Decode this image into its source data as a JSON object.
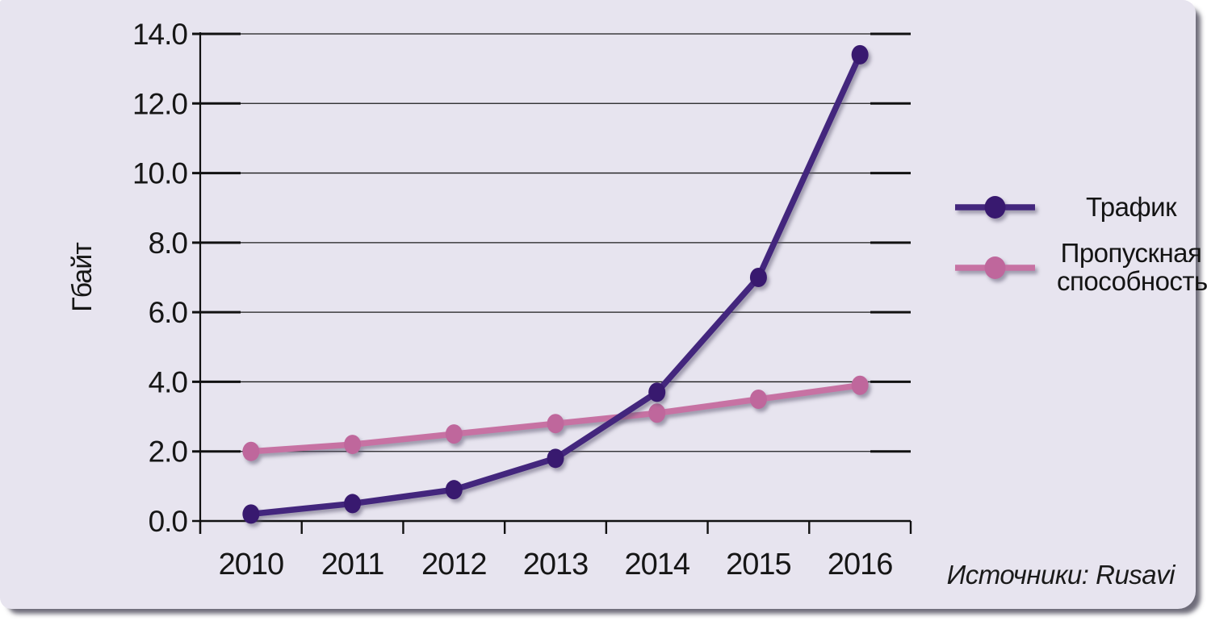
{
  "chart_data": {
    "type": "line",
    "title": "",
    "ylabel": "Гбайт",
    "xlabel": "",
    "categories": [
      "2010",
      "2011",
      "2012",
      "2013",
      "2014",
      "2015",
      "2016"
    ],
    "series": [
      {
        "key": "traffic",
        "name": "Трафик",
        "color": "#43267d",
        "marker_color": "#38196f",
        "values": [
          0.2,
          0.5,
          0.9,
          1.8,
          3.7,
          7.0,
          13.4
        ]
      },
      {
        "key": "bandwidth",
        "name": "Пропускная способность",
        "color": "#c772a3",
        "marker_color": "#bf679c",
        "values": [
          2.0,
          2.2,
          2.5,
          2.8,
          3.1,
          3.5,
          3.9
        ]
      }
    ],
    "ylim": [
      0,
      14
    ],
    "ytick_interval": 2,
    "ytick_labels": [
      "0.0",
      "2.0",
      "4.0",
      "6.0",
      "8.0",
      "10.0",
      "12.0",
      "14.0"
    ],
    "grid": true,
    "legend_position": "right",
    "background": "#e7e4ef"
  },
  "source_note": "Источники: Rusavi"
}
